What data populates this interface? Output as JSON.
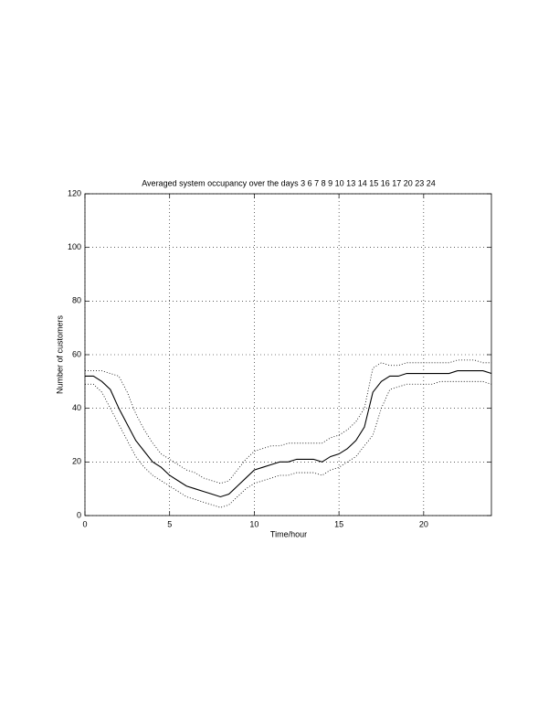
{
  "chart_data": {
    "type": "line",
    "title": "Averaged system occupancy over the days 3 6 7 8 9 10 13 14 15 16 17 20 23 24",
    "x_label": "Time/hour",
    "y_label": "Number of customers",
    "x": [
      0,
      0.5,
      1,
      1.5,
      2,
      2.5,
      3,
      3.5,
      4,
      4.5,
      5,
      5.5,
      6,
      6.5,
      7,
      7.5,
      8,
      8.5,
      9,
      9.5,
      10,
      10.5,
      11,
      11.5,
      12,
      12.5,
      13,
      13.5,
      14,
      14.5,
      15,
      15.5,
      16,
      16.5,
      17,
      17.5,
      18,
      18.5,
      19,
      19.5,
      20,
      20.5,
      21,
      21.5,
      22,
      22.5,
      23,
      23.5,
      24
    ],
    "series": [
      {
        "color": "#000000",
        "style": "solid",
        "values": [
          52,
          52,
          50,
          47,
          40,
          34,
          28,
          24,
          20,
          18,
          15,
          13,
          11,
          10,
          9,
          8,
          7,
          8,
          11,
          14,
          17,
          18,
          19,
          20,
          20,
          21,
          21,
          21,
          20,
          22,
          23,
          25,
          28,
          33,
          46,
          50,
          52,
          52,
          53,
          53,
          53,
          53,
          53,
          53,
          54,
          54,
          54,
          54,
          53
        ]
      },
      {
        "color": "#000000",
        "style": "dotted",
        "values": [
          54,
          54,
          54,
          53,
          52,
          46,
          38,
          32,
          27,
          23,
          21,
          19,
          17,
          16,
          14,
          13,
          12,
          13,
          17,
          21,
          24,
          25,
          26,
          26,
          27,
          27,
          27,
          27,
          27,
          29,
          30,
          32,
          35,
          40,
          55,
          57,
          56,
          56,
          57,
          57,
          57,
          57,
          57,
          57,
          58,
          58,
          58,
          57,
          57
        ]
      },
      {
        "color": "#000000",
        "style": "dotted",
        "values": [
          49,
          49,
          46,
          40,
          34,
          28,
          22,
          18,
          15,
          13,
          11,
          9,
          7,
          6,
          5,
          4,
          3,
          4,
          7,
          10,
          12,
          13,
          14,
          15,
          15,
          16,
          16,
          16,
          15,
          17,
          18,
          20,
          22,
          26,
          30,
          40,
          47,
          48,
          49,
          49,
          49,
          49,
          50,
          50,
          50,
          50,
          50,
          50,
          49
        ]
      }
    ],
    "xlim": [
      0,
      24
    ],
    "xticks": [
      0,
      5,
      10,
      15,
      20
    ],
    "ylim": [
      0,
      120
    ],
    "yticks": [
      0,
      20,
      40,
      60,
      80,
      100,
      120
    ],
    "grid": true
  }
}
